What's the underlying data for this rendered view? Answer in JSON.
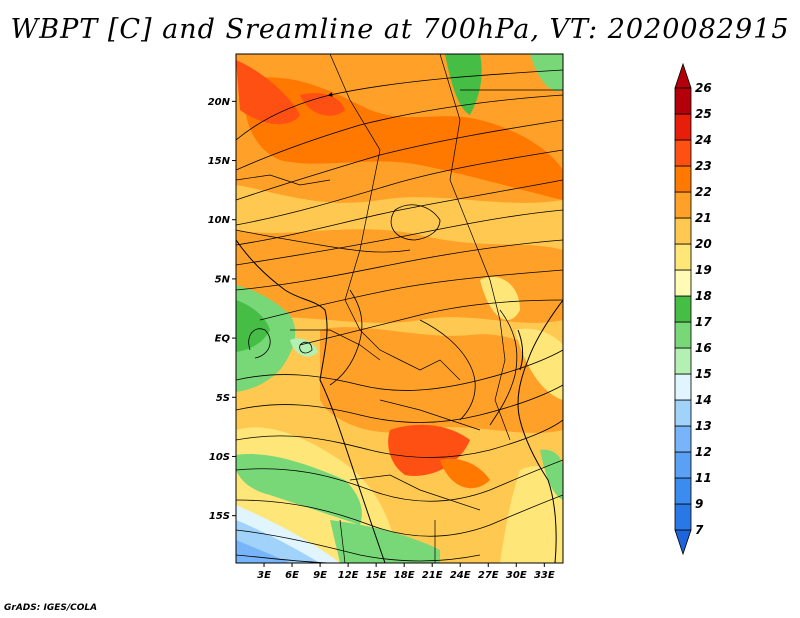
{
  "title": "WBPT [C] and Sreamline at 700hPa, VT: 2020082915",
  "footer": "GrADS: IGES/COLA",
  "map": {
    "lon_range": [
      0,
      35
    ],
    "lat_range": [
      -19,
      24
    ],
    "lat_ticks": [
      {
        "value": 20,
        "label": "20N"
      },
      {
        "value": 15,
        "label": "15N"
      },
      {
        "value": 10,
        "label": "10N"
      },
      {
        "value": 5,
        "label": "5N"
      },
      {
        "value": 0,
        "label": "EQ"
      },
      {
        "value": -5,
        "label": "5S"
      },
      {
        "value": -10,
        "label": "10S"
      },
      {
        "value": -15,
        "label": "15S"
      }
    ],
    "lon_ticks": [
      {
        "value": 3,
        "label": "3E"
      },
      {
        "value": 6,
        "label": "6E"
      },
      {
        "value": 9,
        "label": "9E"
      },
      {
        "value": 12,
        "label": "12E"
      },
      {
        "value": 15,
        "label": "15E"
      },
      {
        "value": 18,
        "label": "18E"
      },
      {
        "value": 21,
        "label": "21E"
      },
      {
        "value": 24,
        "label": "24E"
      },
      {
        "value": 27,
        "label": "27E"
      },
      {
        "value": 30,
        "label": "30E"
      },
      {
        "value": 33,
        "label": "33E"
      }
    ]
  },
  "colorbar": {
    "levels": [
      {
        "label": "7",
        "color": "#1e64dc"
      },
      {
        "label": "9",
        "color": "#2a78e6"
      },
      {
        "label": "11",
        "color": "#3c8cf0"
      },
      {
        "label": "12",
        "color": "#5aa0f5"
      },
      {
        "label": "13",
        "color": "#78b4fa"
      },
      {
        "label": "14",
        "color": "#a0d2fa"
      },
      {
        "label": "15",
        "color": "#e1f5ff"
      },
      {
        "label": "16",
        "color": "#b4f0b4"
      },
      {
        "label": "17",
        "color": "#78d878"
      },
      {
        "label": "18",
        "color": "#46be46"
      },
      {
        "label": "19",
        "color": "#fffab4"
      },
      {
        "label": "20",
        "color": "#ffe678"
      },
      {
        "label": "21",
        "color": "#ffc850"
      },
      {
        "label": "22",
        "color": "#ffa028"
      },
      {
        "label": "23",
        "color": "#ff7800"
      },
      {
        "label": "24",
        "color": "#ff5014"
      },
      {
        "label": "25",
        "color": "#e61e0a"
      },
      {
        "label": "26",
        "color": "#b4000a"
      }
    ],
    "bottom_color": "#1e64dc",
    "top_color": "#b4000a"
  }
}
